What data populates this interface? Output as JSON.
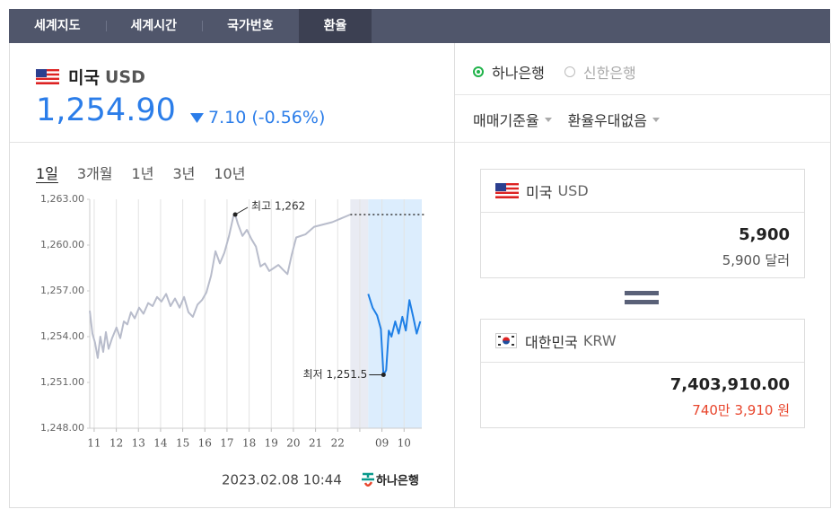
{
  "tabs": {
    "items": [
      "세계지도",
      "세계시간",
      "국가번호",
      "환율"
    ],
    "active": 3
  },
  "rate": {
    "country": "미국",
    "code": "USD",
    "value": "1,254.90",
    "change": "7.10",
    "change_pct": "(-0.56%)"
  },
  "periods": {
    "items": [
      "1일",
      "3개월",
      "1년",
      "3년",
      "10년"
    ],
    "active": 0
  },
  "chart_data": {
    "type": "line",
    "xlim": [
      -0.2,
      14.8
    ],
    "ylim": [
      1248,
      1263
    ],
    "xticks": [
      {
        "value": 0,
        "label": "11"
      },
      {
        "value": 1,
        "label": "12"
      },
      {
        "value": 2,
        "label": "13"
      },
      {
        "value": 3,
        "label": "14"
      },
      {
        "value": 4,
        "label": "15"
      },
      {
        "value": 5,
        "label": "16"
      },
      {
        "value": 6,
        "label": "17"
      },
      {
        "value": 7,
        "label": "18"
      },
      {
        "value": 8,
        "label": "19"
      },
      {
        "value": 9,
        "label": "20"
      },
      {
        "value": 10,
        "label": "21"
      },
      {
        "value": 11,
        "label": "22"
      },
      {
        "value": 12,
        "label": null
      },
      {
        "value": 13,
        "label": "09"
      },
      {
        "value": 14,
        "label": "10"
      }
    ],
    "yticks": [
      {
        "value": 1263,
        "label": "1,263.00"
      },
      {
        "value": 1260,
        "label": "1,260.00"
      },
      {
        "value": 1257,
        "label": "1,257.00"
      },
      {
        "value": 1254,
        "label": "1,254.00"
      },
      {
        "value": 1251,
        "label": "1,251.00"
      },
      {
        "value": 1248,
        "label": "1,248.00"
      }
    ],
    "grid": true,
    "series": [
      {
        "color": "#b8bccb",
        "x": [
          -0.2,
          -0.08,
          0.04,
          0.16,
          0.28,
          0.41,
          0.53,
          0.65,
          0.81,
          1.01,
          1.18,
          1.34,
          1.5,
          1.66,
          1.83,
          2.03,
          2.23,
          2.44,
          2.64,
          2.84,
          3.04,
          3.25,
          3.45,
          3.65,
          3.86,
          4.06,
          4.26,
          4.46,
          4.67,
          4.87,
          5.07,
          5.28,
          5.48,
          5.68,
          5.88,
          6.09,
          6.29,
          6.37,
          6.49,
          6.7,
          6.9,
          7.1,
          7.31,
          7.51,
          7.71,
          7.91,
          8.12,
          8.32,
          8.52,
          8.73,
          8.93,
          9.13,
          9.54,
          9.94,
          10.75,
          11.57
        ],
        "values": [
          1255.7,
          1254.2,
          1253.6,
          1252.6,
          1254.0,
          1253.0,
          1254.3,
          1253.2,
          1253.9,
          1254.6,
          1253.9,
          1255.0,
          1254.8,
          1255.6,
          1255.2,
          1255.9,
          1255.5,
          1256.2,
          1256.0,
          1256.6,
          1256.3,
          1256.8,
          1256.0,
          1256.5,
          1255.9,
          1256.6,
          1255.6,
          1255.3,
          1256.1,
          1256.4,
          1256.9,
          1258.0,
          1259.6,
          1258.8,
          1259.5,
          1260.6,
          1261.9,
          1262.0,
          1261.4,
          1260.6,
          1261.0,
          1260.4,
          1259.9,
          1258.6,
          1258.8,
          1258.3,
          1258.5,
          1258.7,
          1258.4,
          1258.1,
          1259.4,
          1260.5,
          1260.7,
          1261.2,
          1261.5,
          1262.0
        ]
      },
      {
        "color": "#1e7fe6",
        "x": [
          12.38,
          12.58,
          12.78,
          12.95,
          13.07,
          13.19,
          13.31,
          13.43,
          13.6,
          13.76,
          13.92,
          14.08,
          14.24,
          14.41,
          14.57,
          14.73
        ],
        "values": [
          1256.8,
          1255.9,
          1255.4,
          1254.5,
          1251.5,
          1251.8,
          1254.4,
          1254.0,
          1255.0,
          1254.2,
          1255.3,
          1254.4,
          1256.4,
          1255.3,
          1254.2,
          1255.0
        ]
      }
    ],
    "annotations": [
      {
        "text": "최고 1,262",
        "x": 6.37,
        "y": 1262
      },
      {
        "text": "최저 1,251.5",
        "x": 13.07,
        "y": 1251.5
      }
    ],
    "timestamp": "2023.02.08 10:44",
    "source": "하나은행"
  },
  "converter": {
    "banks": {
      "items": [
        "하나은행",
        "신한은행"
      ],
      "active": 0
    },
    "options": [
      "매매기준율",
      "환율우대없음"
    ],
    "from": {
      "country": "미국",
      "code": "USD",
      "amount": "5,900",
      "amount_text": "5,900 달러"
    },
    "to": {
      "country": "대한민국",
      "code": "KRW",
      "amount": "7,403,910.00",
      "amount_text": "740만 3,910 원"
    }
  }
}
